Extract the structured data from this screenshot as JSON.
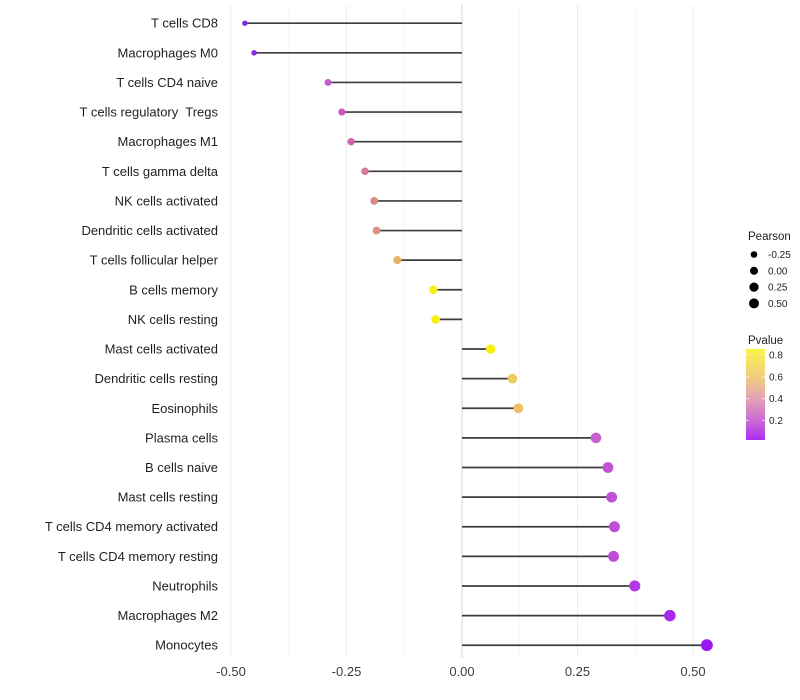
{
  "figure": {
    "background": "#ffffff"
  },
  "chart_data": {
    "type": "scatter",
    "style": "horizontal-lollipop",
    "title": "",
    "xlabel": "",
    "ylabel": "",
    "grid": "major-and-minor-vertical",
    "legend_position": "right",
    "x_axis": {
      "range": [
        -0.555,
        0.555
      ],
      "tick_values": [
        -0.5,
        -0.25,
        0,
        0.25,
        0.5
      ],
      "tick_labels": [
        "-0.50",
        "-0.25",
        "0.00",
        "0.25",
        "0.50"
      ],
      "minor_tick_values": [
        -0.375,
        -0.125,
        0.125,
        0.375
      ]
    },
    "baseline_x": 0,
    "points": [
      {
        "label": "T cells CD8",
        "pearson": -0.47,
        "color": "#8428e3",
        "radius": 2.7
      },
      {
        "label": "Macrophages M0",
        "pearson": -0.45,
        "color": "#8d2ae1",
        "radius": 2.8
      },
      {
        "label": "T cells CD4 naive",
        "pearson": -0.29,
        "color": "#c45ec8",
        "radius": 3.5
      },
      {
        "label": "T cells regulatory  Tregs",
        "pearson": -0.26,
        "color": "#c65cc0",
        "radius": 3.6
      },
      {
        "label": "Macrophages M1",
        "pearson": -0.24,
        "color": "#cb68a9",
        "radius": 3.7
      },
      {
        "label": "T cells gamma delta",
        "pearson": -0.21,
        "color": "#d27d95",
        "radius": 3.8
      },
      {
        "label": "NK cells activated",
        "pearson": -0.19,
        "color": "#da8d86",
        "radius": 3.9
      },
      {
        "label": "Dendritic cells activated",
        "pearson": -0.185,
        "color": "#dd9180",
        "radius": 3.9
      },
      {
        "label": "T cells follicular helper",
        "pearson": -0.14,
        "color": "#e9b369",
        "radius": 4.1
      },
      {
        "label": "B cells memory",
        "pearson": -0.062,
        "color": "#f7ee1c",
        "radius": 4.3
      },
      {
        "label": "NK cells resting",
        "pearson": -0.057,
        "color": "#f8f00e",
        "radius": 4.35
      },
      {
        "label": "Mast cells activated",
        "pearson": 0.062,
        "color": "#f7ef0a",
        "radius": 4.7
      },
      {
        "label": "Dendritic cells resting",
        "pearson": 0.109,
        "color": "#f0c95f",
        "radius": 4.85
      },
      {
        "label": "Eosinophils",
        "pearson": 0.122,
        "color": "#eec167",
        "radius": 4.9
      },
      {
        "label": "Plasma cells",
        "pearson": 0.29,
        "color": "#c55fc9",
        "radius": 5.3
      },
      {
        "label": "B cells naive",
        "pearson": 0.316,
        "color": "#c152d3",
        "radius": 5.4
      },
      {
        "label": "Mast cells resting",
        "pearson": 0.324,
        "color": "#c050d6",
        "radius": 5.4
      },
      {
        "label": "T cells CD4 memory activated",
        "pearson": 0.33,
        "color": "#be4dd8",
        "radius": 5.45
      },
      {
        "label": "T cells CD4 memory resting",
        "pearson": 0.328,
        "color": "#be4cd9",
        "radius": 5.45
      },
      {
        "label": "Neutrophils",
        "pearson": 0.374,
        "color": "#b23be6",
        "radius": 5.55
      },
      {
        "label": "Macrophages M2",
        "pearson": 0.45,
        "color": "#a828ee",
        "radius": 5.75
      },
      {
        "label": "Monocytes",
        "pearson": 0.53,
        "color": "#9c16f4",
        "radius": 5.95
      }
    ],
    "legend": {
      "size": {
        "title": "Pearson",
        "dot_color": "#000000",
        "entries": [
          {
            "label": "-0.25",
            "radius": 3.3
          },
          {
            "label": "0.00",
            "radius": 4.0
          },
          {
            "label": "0.25",
            "radius": 4.6
          },
          {
            "label": "0.50",
            "radius": 5.0
          }
        ]
      },
      "color": {
        "title": "Pvalue",
        "ticks": [
          {
            "label": "0.8",
            "offset": 0.067
          },
          {
            "label": "0.6",
            "offset": 0.307
          },
          {
            "label": "0.4",
            "offset": 0.545
          },
          {
            "label": "0.2",
            "offset": 0.785
          }
        ],
        "gradient_stops": [
          {
            "offset": 0,
            "color": "#fbf044"
          },
          {
            "offset": 0.07,
            "color": "#f9ea57"
          },
          {
            "offset": 0.31,
            "color": "#f2cc80"
          },
          {
            "offset": 0.55,
            "color": "#e2a1b4"
          },
          {
            "offset": 0.79,
            "color": "#cb69d5"
          },
          {
            "offset": 1,
            "color": "#ad2cf3"
          }
        ]
      }
    },
    "colors": {
      "stem": "#3c3c3c",
      "grid_major": "#ececec",
      "grid_minor": "#f6f6f6",
      "zero_line": "#dcdcdc",
      "axis_text": "#3d3d3d",
      "category_text": "#1f1f1f"
    }
  }
}
